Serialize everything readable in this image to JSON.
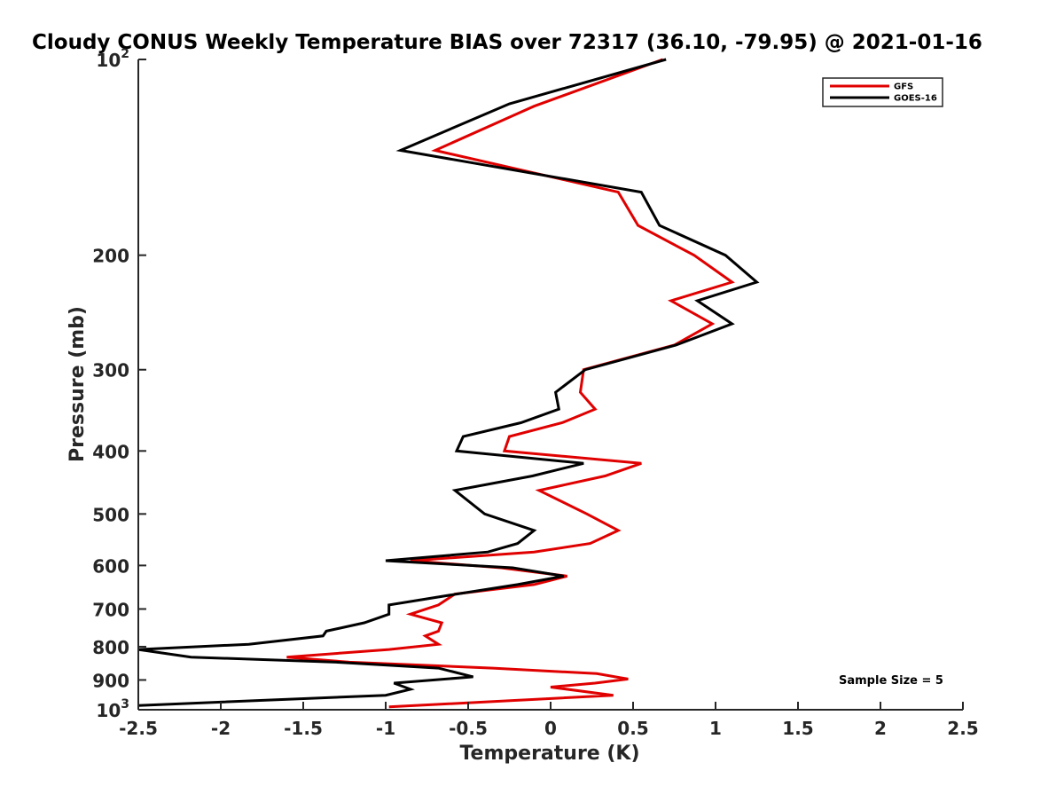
{
  "chart_data": {
    "type": "line",
    "title": "Cloudy CONUS Weekly Temperature BIAS over 72317 (36.10, -79.95) @ 2021-01-16",
    "xlabel": "Temperature (K)",
    "ylabel": "Pressure (mb)",
    "xlim": [
      -2.5,
      2.5
    ],
    "ylim": [
      100,
      1000
    ],
    "y_scale": "log",
    "y_reversed": true,
    "grid": false,
    "legend_position": "top-right",
    "x_ticks": [
      {
        "value": -2.5,
        "label": "-2.5"
      },
      {
        "value": -2,
        "label": "-2"
      },
      {
        "value": -1.5,
        "label": "-1.5"
      },
      {
        "value": -1,
        "label": "-1"
      },
      {
        "value": -0.5,
        "label": "-0.5"
      },
      {
        "value": 0,
        "label": "0"
      },
      {
        "value": 0.5,
        "label": "0.5"
      },
      {
        "value": 1,
        "label": "1"
      },
      {
        "value": 1.5,
        "label": "1.5"
      },
      {
        "value": 2,
        "label": "2"
      },
      {
        "value": 2.5,
        "label": "2.5"
      }
    ],
    "y_ticks": [
      {
        "value": 100,
        "base": "10",
        "exp": "2"
      },
      {
        "value": 200,
        "label": "200"
      },
      {
        "value": 300,
        "label": "300"
      },
      {
        "value": 400,
        "label": "400"
      },
      {
        "value": 500,
        "label": "500"
      },
      {
        "value": 600,
        "label": "600"
      },
      {
        "value": 700,
        "label": "700"
      },
      {
        "value": 800,
        "label": "800"
      },
      {
        "value": 900,
        "label": "900"
      },
      {
        "value": 1000,
        "base": "10",
        "exp": "3"
      }
    ],
    "annotation": "Sample Size = 5",
    "series": [
      {
        "name": "GFS",
        "color": "#e00000",
        "points": [
          {
            "t": 0.68,
            "p": 100
          },
          {
            "t": -0.1,
            "p": 118
          },
          {
            "t": -0.7,
            "p": 138
          },
          {
            "t": 0.41,
            "p": 160
          },
          {
            "t": 0.53,
            "p": 180
          },
          {
            "t": 0.87,
            "p": 200
          },
          {
            "t": 1.1,
            "p": 220
          },
          {
            "t": 0.73,
            "p": 235
          },
          {
            "t": 0.98,
            "p": 255
          },
          {
            "t": 0.75,
            "p": 275
          },
          {
            "t": 0.2,
            "p": 300
          },
          {
            "t": 0.18,
            "p": 325
          },
          {
            "t": 0.27,
            "p": 345
          },
          {
            "t": 0.07,
            "p": 362
          },
          {
            "t": -0.25,
            "p": 380
          },
          {
            "t": -0.28,
            "p": 400
          },
          {
            "t": 0.55,
            "p": 418
          },
          {
            "t": 0.33,
            "p": 437
          },
          {
            "t": -0.07,
            "p": 460
          },
          {
            "t": 0.22,
            "p": 500
          },
          {
            "t": 0.41,
            "p": 530
          },
          {
            "t": 0.24,
            "p": 555
          },
          {
            "t": -0.1,
            "p": 572
          },
          {
            "t": -0.85,
            "p": 590
          },
          {
            "t": -0.3,
            "p": 605
          },
          {
            "t": 0.1,
            "p": 623
          },
          {
            "t": -0.1,
            "p": 642
          },
          {
            "t": -0.58,
            "p": 664
          },
          {
            "t": -0.68,
            "p": 690
          },
          {
            "t": -0.85,
            "p": 713
          },
          {
            "t": -0.66,
            "p": 735
          },
          {
            "t": -0.68,
            "p": 757
          },
          {
            "t": -0.76,
            "p": 770
          },
          {
            "t": -0.68,
            "p": 793
          },
          {
            "t": -0.98,
            "p": 808
          },
          {
            "t": -1.6,
            "p": 830
          },
          {
            "t": -1.22,
            "p": 845
          },
          {
            "t": -0.35,
            "p": 863
          },
          {
            "t": 0.28,
            "p": 880
          },
          {
            "t": 0.47,
            "p": 897
          },
          {
            "t": 0.27,
            "p": 910
          },
          {
            "t": 0.0,
            "p": 923
          },
          {
            "t": 0.38,
            "p": 950
          },
          {
            "t": -0.98,
            "p": 990
          }
        ]
      },
      {
        "name": "GOES-16",
        "color": "#000000",
        "points": [
          {
            "t": 0.7,
            "p": 100
          },
          {
            "t": -0.25,
            "p": 117
          },
          {
            "t": -0.91,
            "p": 138
          },
          {
            "t": 0.55,
            "p": 160
          },
          {
            "t": 0.66,
            "p": 180
          },
          {
            "t": 1.06,
            "p": 200
          },
          {
            "t": 1.25,
            "p": 220
          },
          {
            "t": 0.89,
            "p": 235
          },
          {
            "t": 1.1,
            "p": 255
          },
          {
            "t": 0.76,
            "p": 275
          },
          {
            "t": 0.21,
            "p": 300
          },
          {
            "t": 0.03,
            "p": 325
          },
          {
            "t": 0.05,
            "p": 345
          },
          {
            "t": -0.18,
            "p": 362
          },
          {
            "t": -0.53,
            "p": 380
          },
          {
            "t": -0.57,
            "p": 400
          },
          {
            "t": 0.2,
            "p": 418
          },
          {
            "t": -0.11,
            "p": 437
          },
          {
            "t": -0.58,
            "p": 460
          },
          {
            "t": -0.4,
            "p": 500
          },
          {
            "t": -0.1,
            "p": 530
          },
          {
            "t": -0.2,
            "p": 555
          },
          {
            "t": -0.38,
            "p": 572
          },
          {
            "t": -1.0,
            "p": 590
          },
          {
            "t": -0.23,
            "p": 605
          },
          {
            "t": 0.08,
            "p": 623
          },
          {
            "t": -0.2,
            "p": 642
          },
          {
            "t": -0.57,
            "p": 664
          },
          {
            "t": -0.98,
            "p": 690
          },
          {
            "t": -0.98,
            "p": 713
          },
          {
            "t": -1.13,
            "p": 735
          },
          {
            "t": -1.36,
            "p": 757
          },
          {
            "t": -1.38,
            "p": 770
          },
          {
            "t": -1.83,
            "p": 793
          },
          {
            "t": -2.5,
            "p": 808
          },
          {
            "t": -2.18,
            "p": 830
          },
          {
            "t": -1.3,
            "p": 845
          },
          {
            "t": -0.68,
            "p": 863
          },
          {
            "t": -0.47,
            "p": 890
          },
          {
            "t": -0.95,
            "p": 910
          },
          {
            "t": -0.85,
            "p": 930
          },
          {
            "t": -1.0,
            "p": 950
          },
          {
            "t": -2.5,
            "p": 985
          }
        ]
      }
    ]
  }
}
